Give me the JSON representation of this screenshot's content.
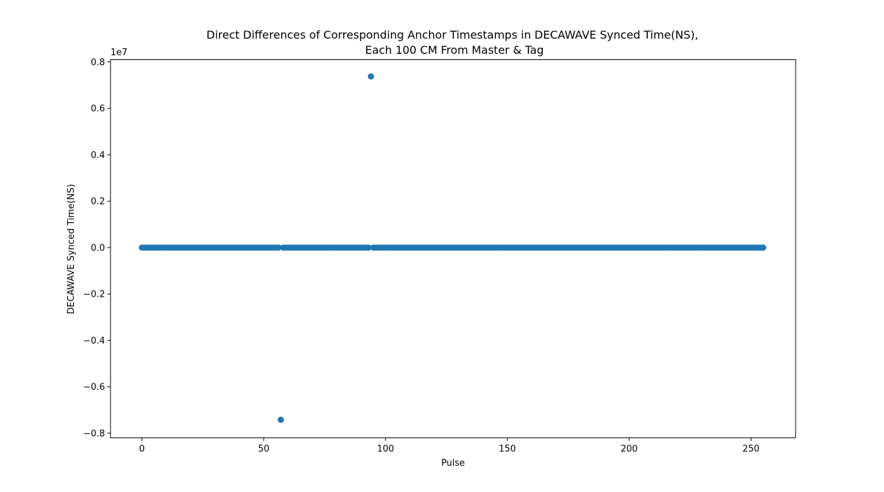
{
  "chart_data": {
    "type": "scatter",
    "title_line1": "Direct Differences of Corresponding Anchor Timestamps in DECAWAVE Synced Time(NS),",
    "title_line2": "Each 100 CM From Master & Tag",
    "xlabel": "Pulse",
    "ylabel": "DECAWAVE Synced Time(NS)",
    "y_offset_label": "1e7",
    "xlim": [
      -12.9,
      268.3
    ],
    "ylim": [
      -8200000.0,
      8100000.0
    ],
    "x_ticks": [
      0,
      50,
      100,
      150,
      200,
      250
    ],
    "x_tick_labels": [
      "0",
      "50",
      "100",
      "150",
      "200",
      "250"
    ],
    "y_ticks": [
      8000000.0,
      6000000.0,
      4000000.0,
      2000000.0,
      0,
      -2000000.0,
      -4000000.0,
      -6000000.0,
      -8000000.0
    ],
    "y_tick_labels": [
      "0.8",
      "0.6",
      "0.4",
      "0.2",
      "0.0",
      "−0.2",
      "−0.4",
      "−0.6",
      "−0.8"
    ],
    "grid": false,
    "marker_color": "#1f77b4",
    "baseline": {
      "x_start": 0,
      "x_end": 255,
      "y": 0,
      "exclude_x": [
        57,
        94
      ]
    },
    "outliers": [
      {
        "x": 57,
        "y": -7420000.0
      },
      {
        "x": 94,
        "y": 7380000.0
      }
    ]
  }
}
